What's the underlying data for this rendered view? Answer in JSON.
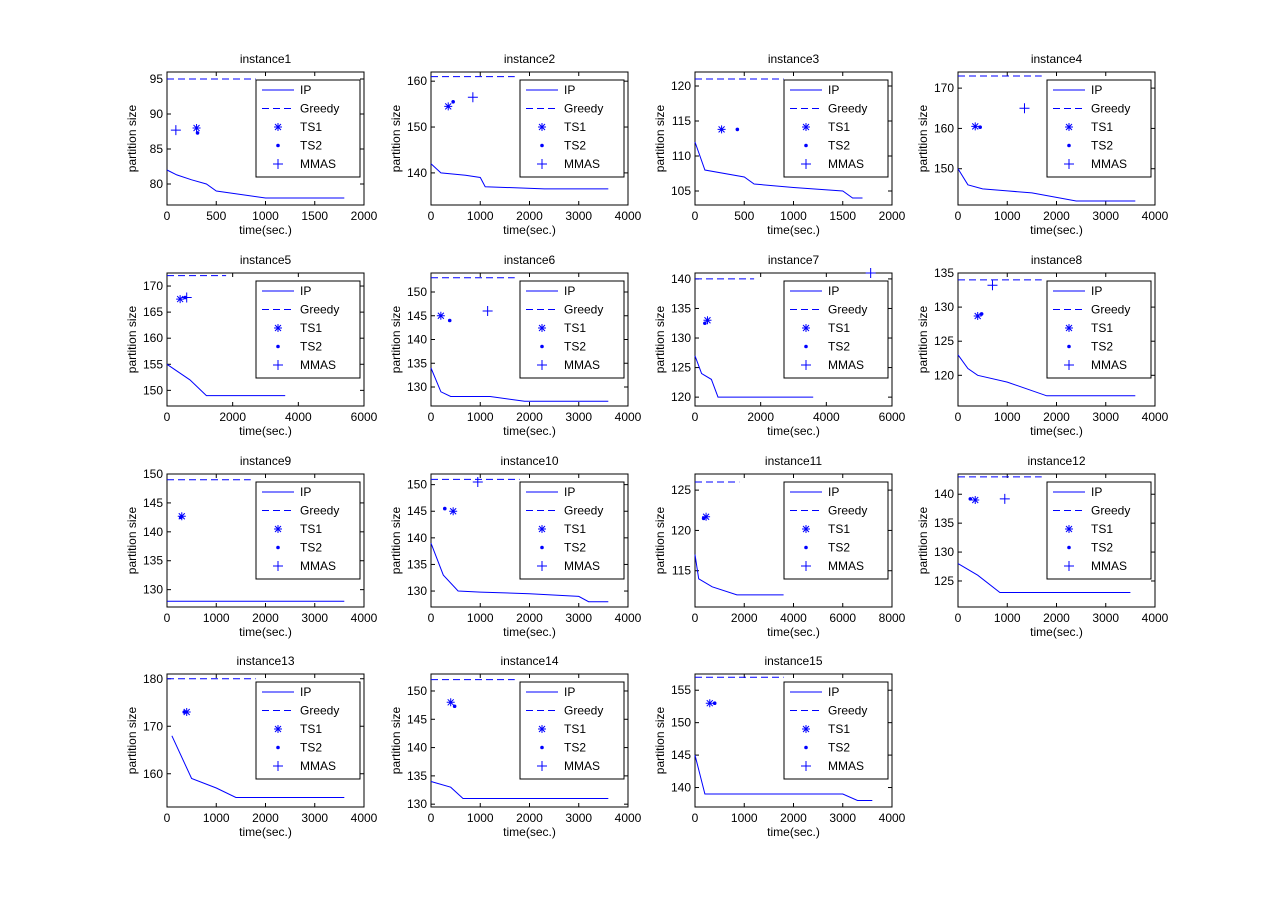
{
  "ylabel": "partition size",
  "xlabel": "time(sec.)",
  "legend": [
    {
      "label": "IP",
      "style": "solid"
    },
    {
      "label": "Greedy",
      "style": "dashed"
    },
    {
      "label": "TS1",
      "style": "star"
    },
    {
      "label": "TS2",
      "style": "dot"
    },
    {
      "label": "MMAS",
      "style": "plus"
    }
  ],
  "line_color": "#0000ff",
  "chart_data": [
    {
      "type": "line",
      "title": "instance1",
      "xticks": [
        0,
        500,
        1000,
        1500,
        2000
      ],
      "yticks": [
        80,
        85,
        90,
        95
      ],
      "xlim": [
        0,
        2000
      ],
      "ylim": [
        77,
        96
      ],
      "ip": [
        [
          0,
          82
        ],
        [
          100,
          81.3
        ],
        [
          250,
          80.6
        ],
        [
          400,
          80
        ],
        [
          500,
          79
        ],
        [
          1000,
          78
        ],
        [
          1800,
          78
        ]
      ],
      "greedy": {
        "y": 95,
        "x": [
          0,
          900
        ]
      },
      "ts1": [
        [
          300,
          88
        ]
      ],
      "ts2": [
        [
          310,
          87.3
        ]
      ],
      "mmas": [
        [
          90,
          87.7
        ]
      ]
    },
    {
      "type": "line",
      "title": "instance2",
      "xticks": [
        0,
        1000,
        2000,
        3000,
        4000
      ],
      "yticks": [
        140,
        150,
        160
      ],
      "xlim": [
        0,
        4000
      ],
      "ylim": [
        133,
        162
      ],
      "ip": [
        [
          0,
          142
        ],
        [
          200,
          140
        ],
        [
          700,
          139.5
        ],
        [
          1000,
          139
        ],
        [
          1100,
          137
        ],
        [
          2300,
          136.5
        ],
        [
          3600,
          136.5
        ]
      ],
      "greedy": {
        "y": 161,
        "x": [
          0,
          1700
        ]
      },
      "ts1": [
        [
          350,
          154.5
        ]
      ],
      "ts2": [
        [
          450,
          155.5
        ]
      ],
      "mmas": [
        [
          850,
          156.5
        ]
      ]
    },
    {
      "type": "line",
      "title": "instance3",
      "xticks": [
        0,
        500,
        1000,
        1500,
        2000
      ],
      "yticks": [
        105,
        110,
        115,
        120
      ],
      "xlim": [
        0,
        2000
      ],
      "ylim": [
        103,
        122
      ],
      "ip": [
        [
          0,
          112
        ],
        [
          100,
          108
        ],
        [
          500,
          107
        ],
        [
          600,
          106
        ],
        [
          1000,
          105.5
        ],
        [
          1500,
          105
        ],
        [
          1600,
          104
        ],
        [
          1700,
          104
        ]
      ],
      "greedy": {
        "y": 121,
        "x": [
          0,
          900
        ]
      },
      "ts1": [
        [
          270,
          113.8
        ]
      ],
      "ts2": [
        [
          430,
          113.8
        ]
      ],
      "mmas": []
    },
    {
      "type": "line",
      "title": "instance4",
      "xticks": [
        0,
        1000,
        2000,
        3000,
        4000
      ],
      "yticks": [
        150,
        160,
        170
      ],
      "xlim": [
        0,
        4000
      ],
      "ylim": [
        141,
        174
      ],
      "ip": [
        [
          0,
          150
        ],
        [
          200,
          146
        ],
        [
          500,
          145
        ],
        [
          1000,
          144.5
        ],
        [
          1500,
          144
        ],
        [
          2400,
          142
        ],
        [
          3600,
          142
        ]
      ],
      "greedy": {
        "y": 173,
        "x": [
          0,
          1700
        ]
      },
      "ts1": [
        [
          350,
          160.5
        ]
      ],
      "ts2": [
        [
          450,
          160.3
        ]
      ],
      "mmas": [
        [
          1350,
          165
        ]
      ]
    },
    {
      "type": "line",
      "title": "instance5",
      "xticks": [
        0,
        2000,
        4000,
        6000
      ],
      "yticks": [
        150,
        155,
        160,
        165,
        170
      ],
      "xlim": [
        0,
        6000
      ],
      "ylim": [
        147,
        172.5
      ],
      "ip": [
        [
          0,
          155
        ],
        [
          700,
          152
        ],
        [
          1200,
          149
        ],
        [
          3600,
          149
        ]
      ],
      "greedy": {
        "y": 172,
        "x": [
          0,
          1800
        ]
      },
      "ts1": [
        [
          400,
          167.5
        ]
      ],
      "ts2": [
        [
          550,
          167.8
        ]
      ],
      "mmas": [
        [
          600,
          167.8
        ]
      ]
    },
    {
      "type": "line",
      "title": "instance6",
      "xticks": [
        0,
        1000,
        2000,
        3000,
        4000
      ],
      "yticks": [
        130,
        135,
        140,
        145,
        150
      ],
      "xlim": [
        0,
        4000
      ],
      "ylim": [
        126,
        154
      ],
      "ip": [
        [
          0,
          134
        ],
        [
          200,
          129
        ],
        [
          400,
          128
        ],
        [
          1200,
          128
        ],
        [
          1900,
          127
        ],
        [
          3600,
          127
        ]
      ],
      "greedy": {
        "y": 153,
        "x": [
          0,
          1700
        ]
      },
      "ts1": [
        [
          200,
          145
        ]
      ],
      "ts2": [
        [
          380,
          144
        ]
      ],
      "mmas": [
        [
          1150,
          146
        ]
      ]
    },
    {
      "type": "line",
      "title": "instance7",
      "xticks": [
        0,
        2000,
        4000,
        6000
      ],
      "yticks": [
        120,
        125,
        130,
        135,
        140
      ],
      "xlim": [
        0,
        6000
      ],
      "ylim": [
        118.5,
        141
      ],
      "ip": [
        [
          0,
          127
        ],
        [
          200,
          124
        ],
        [
          500,
          123
        ],
        [
          700,
          120
        ],
        [
          3600,
          120
        ]
      ],
      "greedy": {
        "y": 140,
        "x": [
          0,
          1800
        ]
      },
      "ts1": [
        [
          380,
          133
        ]
      ],
      "ts2": [
        [
          300,
          132.5
        ]
      ],
      "mmas": [
        [
          5350,
          141
        ]
      ]
    },
    {
      "type": "line",
      "title": "instance8",
      "xticks": [
        0,
        1000,
        2000,
        3000,
        4000
      ],
      "yticks": [
        120,
        125,
        130,
        135
      ],
      "xlim": [
        0,
        4000
      ],
      "ylim": [
        115.5,
        135
      ],
      "ip": [
        [
          0,
          123
        ],
        [
          200,
          121
        ],
        [
          400,
          120
        ],
        [
          1000,
          119
        ],
        [
          1800,
          117
        ],
        [
          3600,
          117
        ]
      ],
      "greedy": {
        "y": 134,
        "x": [
          0,
          1700
        ]
      },
      "ts1": [
        [
          400,
          128.7
        ]
      ],
      "ts2": [
        [
          480,
          129
        ]
      ],
      "mmas": [
        [
          700,
          133.2
        ]
      ]
    },
    {
      "type": "line",
      "title": "instance9",
      "xticks": [
        0,
        1000,
        2000,
        3000,
        4000
      ],
      "yticks": [
        130,
        135,
        140,
        145,
        150
      ],
      "xlim": [
        0,
        4000
      ],
      "ylim": [
        127,
        150
      ],
      "ip": [
        [
          0,
          128
        ],
        [
          3600,
          128
        ]
      ],
      "greedy": {
        "y": 149,
        "x": [
          0,
          1700
        ]
      },
      "ts1": [
        [
          300,
          142.7
        ]
      ],
      "ts2": [
        [
          280,
          142.5
        ]
      ],
      "mmas": []
    },
    {
      "type": "line",
      "title": "instance10",
      "xticks": [
        0,
        1000,
        2000,
        3000,
        4000
      ],
      "yticks": [
        130,
        135,
        140,
        145,
        150
      ],
      "xlim": [
        0,
        4000
      ],
      "ylim": [
        127,
        152
      ],
      "ip": [
        [
          0,
          139
        ],
        [
          250,
          133
        ],
        [
          550,
          130
        ],
        [
          1000,
          129.8
        ],
        [
          2000,
          129.5
        ],
        [
          3000,
          129
        ],
        [
          3200,
          128
        ],
        [
          3600,
          128
        ]
      ],
      "greedy": {
        "y": 151,
        "x": [
          0,
          1800
        ]
      },
      "ts1": [
        [
          450,
          145
        ]
      ],
      "ts2": [
        [
          280,
          145.5
        ]
      ],
      "mmas": [
        [
          950,
          150.5
        ]
      ]
    },
    {
      "type": "line",
      "title": "instance11",
      "xticks": [
        0,
        2000,
        4000,
        6000,
        8000
      ],
      "yticks": [
        115,
        120,
        125
      ],
      "xlim": [
        0,
        8000
      ],
      "ylim": [
        110.5,
        127
      ],
      "ip": [
        [
          0,
          117
        ],
        [
          150,
          114
        ],
        [
          700,
          113
        ],
        [
          1700,
          112
        ],
        [
          3600,
          112
        ]
      ],
      "greedy": {
        "y": 126,
        "x": [
          0,
          1800
        ]
      },
      "ts1": [
        [
          450,
          121.7
        ]
      ],
      "ts2": [
        [
          350,
          121.5
        ]
      ],
      "mmas": []
    },
    {
      "type": "line",
      "title": "instance12",
      "xticks": [
        0,
        1000,
        2000,
        3000,
        4000
      ],
      "yticks": [
        125,
        130,
        135,
        140
      ],
      "xlim": [
        0,
        4000
      ],
      "ylim": [
        120.5,
        143.5
      ],
      "ip": [
        [
          0,
          128
        ],
        [
          400,
          126
        ],
        [
          850,
          123
        ],
        [
          3500,
          123
        ]
      ],
      "greedy": {
        "y": 143,
        "x": [
          0,
          1700
        ]
      },
      "ts1": [
        [
          350,
          139
        ]
      ],
      "ts2": [
        [
          250,
          139.2
        ]
      ],
      "mmas": [
        [
          950,
          139.2
        ]
      ]
    },
    {
      "type": "line",
      "title": "instance13",
      "xticks": [
        0,
        1000,
        2000,
        3000,
        4000
      ],
      "yticks": [
        160,
        170,
        180
      ],
      "xlim": [
        0,
        4000
      ],
      "ylim": [
        153,
        181
      ],
      "ip": [
        [
          100,
          168
        ],
        [
          500,
          159
        ],
        [
          1000,
          157
        ],
        [
          1400,
          155
        ],
        [
          3600,
          155
        ]
      ],
      "greedy": {
        "y": 180,
        "x": [
          0,
          1800
        ]
      },
      "ts1": [
        [
          400,
          173
        ]
      ],
      "ts2": [
        [
          350,
          173
        ]
      ],
      "mmas": []
    },
    {
      "type": "line",
      "title": "instance14",
      "xticks": [
        0,
        1000,
        2000,
        3000,
        4000
      ],
      "yticks": [
        130,
        135,
        140,
        145,
        150
      ],
      "xlim": [
        0,
        4000
      ],
      "ylim": [
        129.5,
        153
      ],
      "ip": [
        [
          0,
          134
        ],
        [
          400,
          133
        ],
        [
          650,
          131
        ],
        [
          3600,
          131
        ]
      ],
      "greedy": {
        "y": 152,
        "x": [
          0,
          1700
        ]
      },
      "ts1": [
        [
          400,
          148
        ]
      ],
      "ts2": [
        [
          480,
          147.3
        ]
      ],
      "mmas": []
    },
    {
      "type": "line",
      "title": "instance15",
      "xticks": [
        0,
        1000,
        2000,
        3000,
        4000
      ],
      "yticks": [
        140,
        145,
        150,
        155
      ],
      "xlim": [
        0,
        4000
      ],
      "ylim": [
        137,
        157.5
      ],
      "ip": [
        [
          0,
          145
        ],
        [
          200,
          139
        ],
        [
          3000,
          139
        ],
        [
          3300,
          138
        ],
        [
          3600,
          138
        ]
      ],
      "greedy": {
        "y": 157,
        "x": [
          0,
          1800
        ]
      },
      "ts1": [
        [
          300,
          153
        ]
      ],
      "ts2": [
        [
          400,
          153
        ]
      ],
      "mmas": []
    }
  ]
}
